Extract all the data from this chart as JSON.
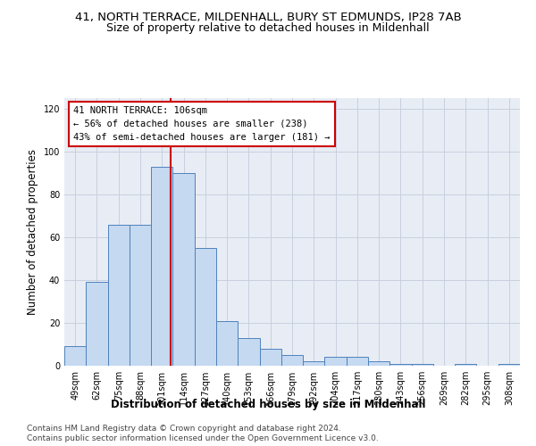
{
  "title": "41, NORTH TERRACE, MILDENHALL, BURY ST EDMUNDS, IP28 7AB",
  "subtitle": "Size of property relative to detached houses in Mildenhall",
  "xlabel": "Distribution of detached houses by size in Mildenhall",
  "ylabel": "Number of detached properties",
  "categories": [
    "49sqm",
    "62sqm",
    "75sqm",
    "88sqm",
    "101sqm",
    "114sqm",
    "127sqm",
    "140sqm",
    "153sqm",
    "166sqm",
    "179sqm",
    "192sqm",
    "204sqm",
    "217sqm",
    "230sqm",
    "243sqm",
    "256sqm",
    "269sqm",
    "282sqm",
    "295sqm",
    "308sqm"
  ],
  "values": [
    9,
    39,
    66,
    66,
    93,
    90,
    55,
    21,
    13,
    8,
    5,
    2,
    4,
    4,
    2,
    1,
    1,
    0,
    1,
    0,
    1
  ],
  "bar_color": "#c5d9f0",
  "bar_edge_color": "#4f81bd",
  "annotation_label": "41 NORTH TERRACE: 106sqm",
  "annotation_line1": "← 56% of detached houses are smaller (238)",
  "annotation_line2": "43% of semi-detached houses are larger (181) →",
  "red_line_color": "#cc0000",
  "annotation_box_facecolor": "#ffffff",
  "annotation_box_edgecolor": "#cc0000",
  "ylim": [
    0,
    125
  ],
  "yticks": [
    0,
    20,
    40,
    60,
    80,
    100,
    120
  ],
  "grid_color": "#c8d0df",
  "bg_color": "#e8edf5",
  "footer1": "Contains HM Land Registry data © Crown copyright and database right 2024.",
  "footer2": "Contains public sector information licensed under the Open Government Licence v3.0.",
  "title_fontsize": 9.5,
  "subtitle_fontsize": 9,
  "axis_label_fontsize": 8.5,
  "tick_fontsize": 7,
  "annotation_fontsize": 7.5,
  "footer_fontsize": 6.5,
  "red_line_index": 4.38
}
